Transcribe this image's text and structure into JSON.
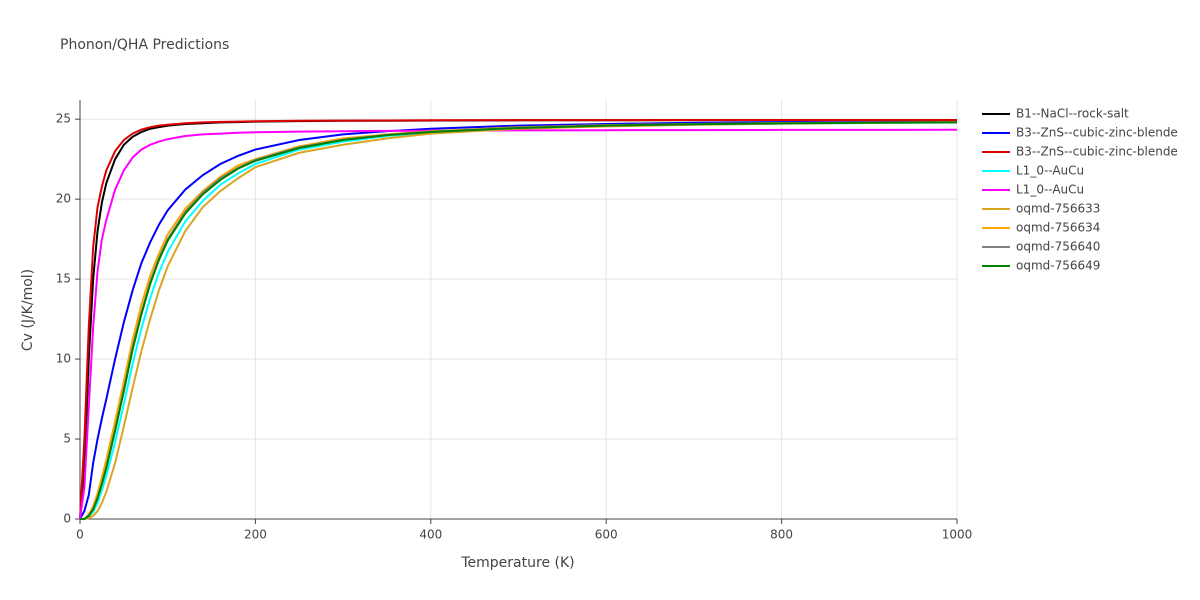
{
  "chart_data": {
    "type": "line",
    "title": "Phonon/QHA Predictions",
    "x_label": "Temperature (K)",
    "y_label": "Cv (J/K/mol)",
    "xlim": [
      0,
      1000
    ],
    "ylim": [
      0,
      26.2
    ],
    "xticks": [
      0,
      200,
      400,
      600,
      800,
      1000
    ],
    "yticks": [
      0,
      5,
      10,
      15,
      20,
      25
    ],
    "grid": true,
    "legend": "right",
    "x": [
      0,
      5,
      10,
      15,
      20,
      25,
      30,
      40,
      50,
      60,
      70,
      80,
      90,
      100,
      120,
      140,
      160,
      180,
      200,
      250,
      300,
      350,
      400,
      500,
      600,
      700,
      800,
      900,
      1000
    ],
    "series": [
      {
        "name": "B1--NaCl--rock-salt",
        "color": "#000000",
        "values": [
          0,
          3,
          10,
          15,
          18,
          19.8,
          21,
          22.5,
          23.4,
          23.9,
          24.2,
          24.4,
          24.5,
          24.6,
          24.7,
          24.75,
          24.8,
          24.82,
          24.85,
          24.88,
          24.9,
          24.9,
          24.92,
          24.93,
          24.93,
          24.94,
          24.94,
          24.94,
          24.94
        ]
      },
      {
        "name": "B3--ZnS--cubic-zinc-blende",
        "color": "#0000ff",
        "values": [
          0,
          0.5,
          1.5,
          3.5,
          5,
          6.3,
          7.5,
          10,
          12.3,
          14.3,
          16,
          17.3,
          18.4,
          19.3,
          20.6,
          21.5,
          22.2,
          22.7,
          23.1,
          23.7,
          24.05,
          24.25,
          24.4,
          24.6,
          24.7,
          24.78,
          24.82,
          24.85,
          24.87
        ]
      },
      {
        "name": "B3--ZnS--cubic-zinc-blende",
        "color": "#dd0000",
        "values": [
          0,
          5,
          12,
          17,
          19.5,
          20.8,
          21.8,
          23,
          23.7,
          24.1,
          24.35,
          24.5,
          24.6,
          24.65,
          24.75,
          24.8,
          24.83,
          24.85,
          24.87,
          24.9,
          24.91,
          24.92,
          24.93,
          24.94,
          24.94,
          24.95,
          24.95,
          24.95,
          24.95
        ]
      },
      {
        "name": "L1_0--AuCu",
        "color": "#00ffff",
        "values": [
          0,
          0,
          0.15,
          0.45,
          1,
          1.8,
          2.7,
          4.8,
          7.2,
          9.7,
          11.9,
          13.8,
          15.4,
          16.7,
          18.6,
          19.9,
          20.9,
          21.6,
          22.2,
          23.1,
          23.6,
          23.95,
          24.15,
          24.42,
          24.58,
          24.66,
          24.72,
          24.76,
          24.79
        ]
      },
      {
        "name": "L1_0--AuCu",
        "color": "#ff00ff",
        "values": [
          0,
          2,
          7,
          12,
          15.5,
          17.5,
          18.7,
          20.6,
          21.8,
          22.6,
          23.1,
          23.4,
          23.6,
          23.75,
          23.95,
          24.05,
          24.1,
          24.15,
          24.18,
          24.22,
          24.25,
          24.27,
          24.28,
          24.3,
          24.31,
          24.32,
          24.33,
          24.33,
          24.34
        ]
      },
      {
        "name": "oqmd-756633",
        "color": "#daa520",
        "values": [
          0,
          0,
          0.05,
          0.2,
          0.5,
          1,
          1.7,
          3.5,
          5.8,
          8.2,
          10.5,
          12.5,
          14.3,
          15.8,
          18,
          19.5,
          20.5,
          21.3,
          22,
          22.9,
          23.4,
          23.8,
          24.1,
          24.4,
          24.55,
          24.65,
          24.72,
          24.77,
          24.8
        ]
      },
      {
        "name": "oqmd-756634",
        "color": "#ffa500",
        "values": [
          0,
          0,
          0.3,
          0.8,
          1.6,
          2.6,
          3.7,
          6.1,
          8.6,
          11.2,
          13.4,
          15.2,
          16.6,
          17.8,
          19.4,
          20.5,
          21.4,
          22.1,
          22.5,
          23.3,
          23.8,
          24.05,
          24.25,
          24.5,
          24.63,
          24.7,
          24.76,
          24.8,
          24.82
        ]
      },
      {
        "name": "oqmd-756640",
        "color": "#808080",
        "values": [
          0,
          0,
          0.2,
          0.6,
          1.3,
          2.2,
          3.2,
          5.6,
          8.1,
          10.7,
          12.9,
          14.8,
          16.3,
          17.5,
          19.2,
          20.4,
          21.3,
          21.95,
          22.45,
          23.25,
          23.72,
          24.02,
          24.22,
          24.47,
          24.61,
          24.69,
          24.75,
          24.79,
          24.81
        ]
      },
      {
        "name": "oqmd-756649",
        "color": "#008000",
        "values": [
          0,
          0,
          0.2,
          0.6,
          1.3,
          2.2,
          3.2,
          5.5,
          8,
          10.6,
          12.8,
          14.7,
          16.2,
          17.4,
          19.1,
          20.3,
          21.2,
          21.9,
          22.4,
          23.2,
          23.7,
          24,
          24.2,
          24.45,
          24.6,
          24.68,
          24.74,
          24.78,
          24.8
        ]
      }
    ]
  }
}
